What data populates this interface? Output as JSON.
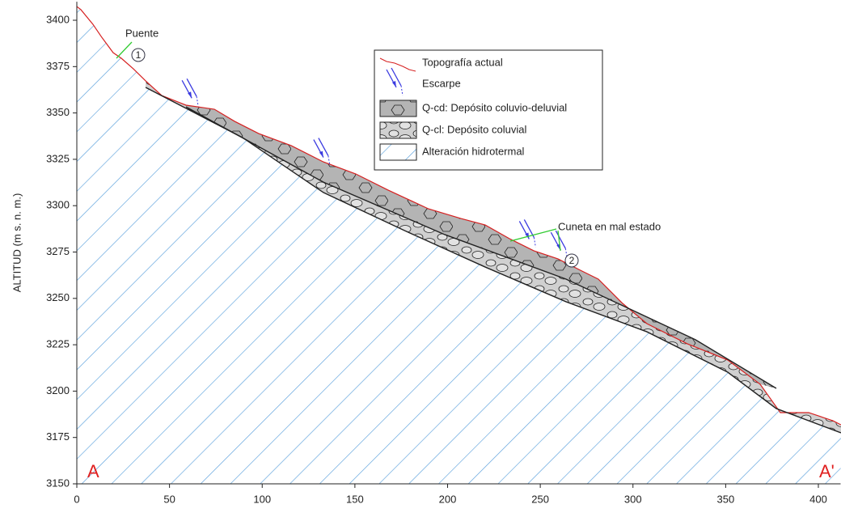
{
  "chart_data": {
    "type": "profile",
    "y_label": "ALTITUD (m s. n. m.)",
    "xlim": [
      0,
      412
    ],
    "ylim": [
      3150,
      3410
    ],
    "xticks": [
      0,
      50,
      100,
      150,
      200,
      250,
      300,
      350,
      400
    ],
    "yticks": [
      3150,
      3175,
      3200,
      3225,
      3250,
      3275,
      3300,
      3325,
      3350,
      3375,
      3400
    ],
    "series": [
      {
        "name": "Topografía actual",
        "color": "#d62020",
        "x": [
          0,
          2.2,
          8.7,
          13.1,
          19.6,
          24,
          30.5,
          37.1,
          45.8,
          58.9,
          74.2,
          85.1,
          98.1,
          115.6,
          133,
          150.5,
          167.9,
          189.7,
          207.2,
          220.3,
          233.4,
          246.5,
          259.5,
          272.6,
          281.3,
          294.4,
          307.5,
          329.3,
          351.1,
          368.6,
          379.5,
          394.8,
          407.9,
          412.2
        ],
        "values": [
          3407.4,
          3405.7,
          3397.8,
          3391.3,
          3382.5,
          3379.5,
          3373.8,
          3367.3,
          3359.4,
          3354.2,
          3352,
          3345.5,
          3338.9,
          3332.4,
          3323.6,
          3317.1,
          3308.4,
          3298.3,
          3293.1,
          3289.6,
          3282.2,
          3275.7,
          3271.3,
          3264.7,
          3260.4,
          3247.3,
          3236.4,
          3225.5,
          3216.8,
          3203.7,
          3188.4,
          3188.4,
          3184,
          3181.8
        ]
      },
      {
        "name": "Q-cd: Depósito coluvio-deluvial",
        "color": "#b4b4b4",
        "x": [
          58.9,
          133,
          198.5,
          263.9,
          333.7,
          377.3
        ],
        "values": [
          3353.3,
          3312.7,
          3284.4,
          3260.4,
          3227.7,
          3201.5
        ]
      },
      {
        "name": "Q-cl: Depósito coluvial",
        "color": "#d0d0d0",
        "x": [
          37.1,
          89.4,
          133,
          176.7,
          220.3,
          263.9,
          307.5,
          351.1,
          377.3,
          412.2
        ],
        "values": [
          3363.8,
          3336.7,
          3307.1,
          3286.6,
          3266.9,
          3248.2,
          3232,
          3210.2,
          3190.6,
          3177.5
        ]
      }
    ],
    "escarpe_label": "Escarpe",
    "escarpe_color": "#3a3ae0",
    "escarpes": {
      "x": [
        62,
        133,
        244,
        261
      ],
      "y": [
        3358,
        3326,
        3282,
        3276
      ]
    },
    "bedrock_label": "Alteración hidrotermal",
    "bedrock_color": "#5aa0dc",
    "annotations": [
      "Puente",
      "1",
      "Cuneta en mal estado",
      "2",
      "A",
      "A'"
    ]
  }
}
